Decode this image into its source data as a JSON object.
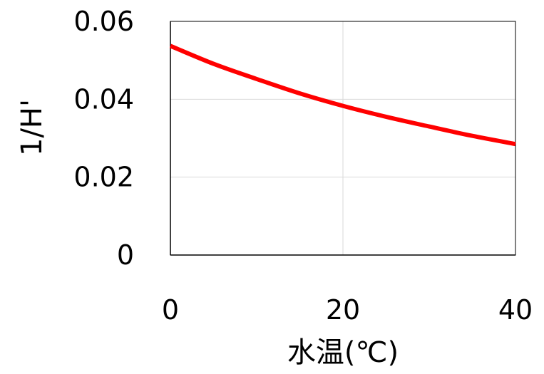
{
  "chart_data": {
    "type": "line",
    "xlabel": "水温(℃)",
    "ylabel": "1/H'",
    "xlim": [
      0,
      40
    ],
    "ylim": [
      0,
      0.06
    ],
    "xticks": [
      0,
      20,
      40
    ],
    "xtick_labels": [
      "0",
      "20",
      "40"
    ],
    "yticks": [
      0,
      0.02,
      0.04,
      0.06
    ],
    "ytick_labels": [
      "0",
      "0.02",
      "0.04",
      "0.06"
    ],
    "grid": true,
    "legend": "none",
    "series": [
      {
        "color": "#ff0000",
        "x": [
          0,
          5,
          10,
          15,
          20,
          25,
          30,
          35,
          40
        ],
        "y": [
          0.0537,
          0.0491,
          0.0452,
          0.0415,
          0.0383,
          0.0355,
          0.033,
          0.0306,
          0.0285
        ]
      }
    ],
    "colors": {
      "line": "#ff0000",
      "grid": "#d9d9d9",
      "axis": "#000000",
      "frame": "#000000"
    }
  }
}
